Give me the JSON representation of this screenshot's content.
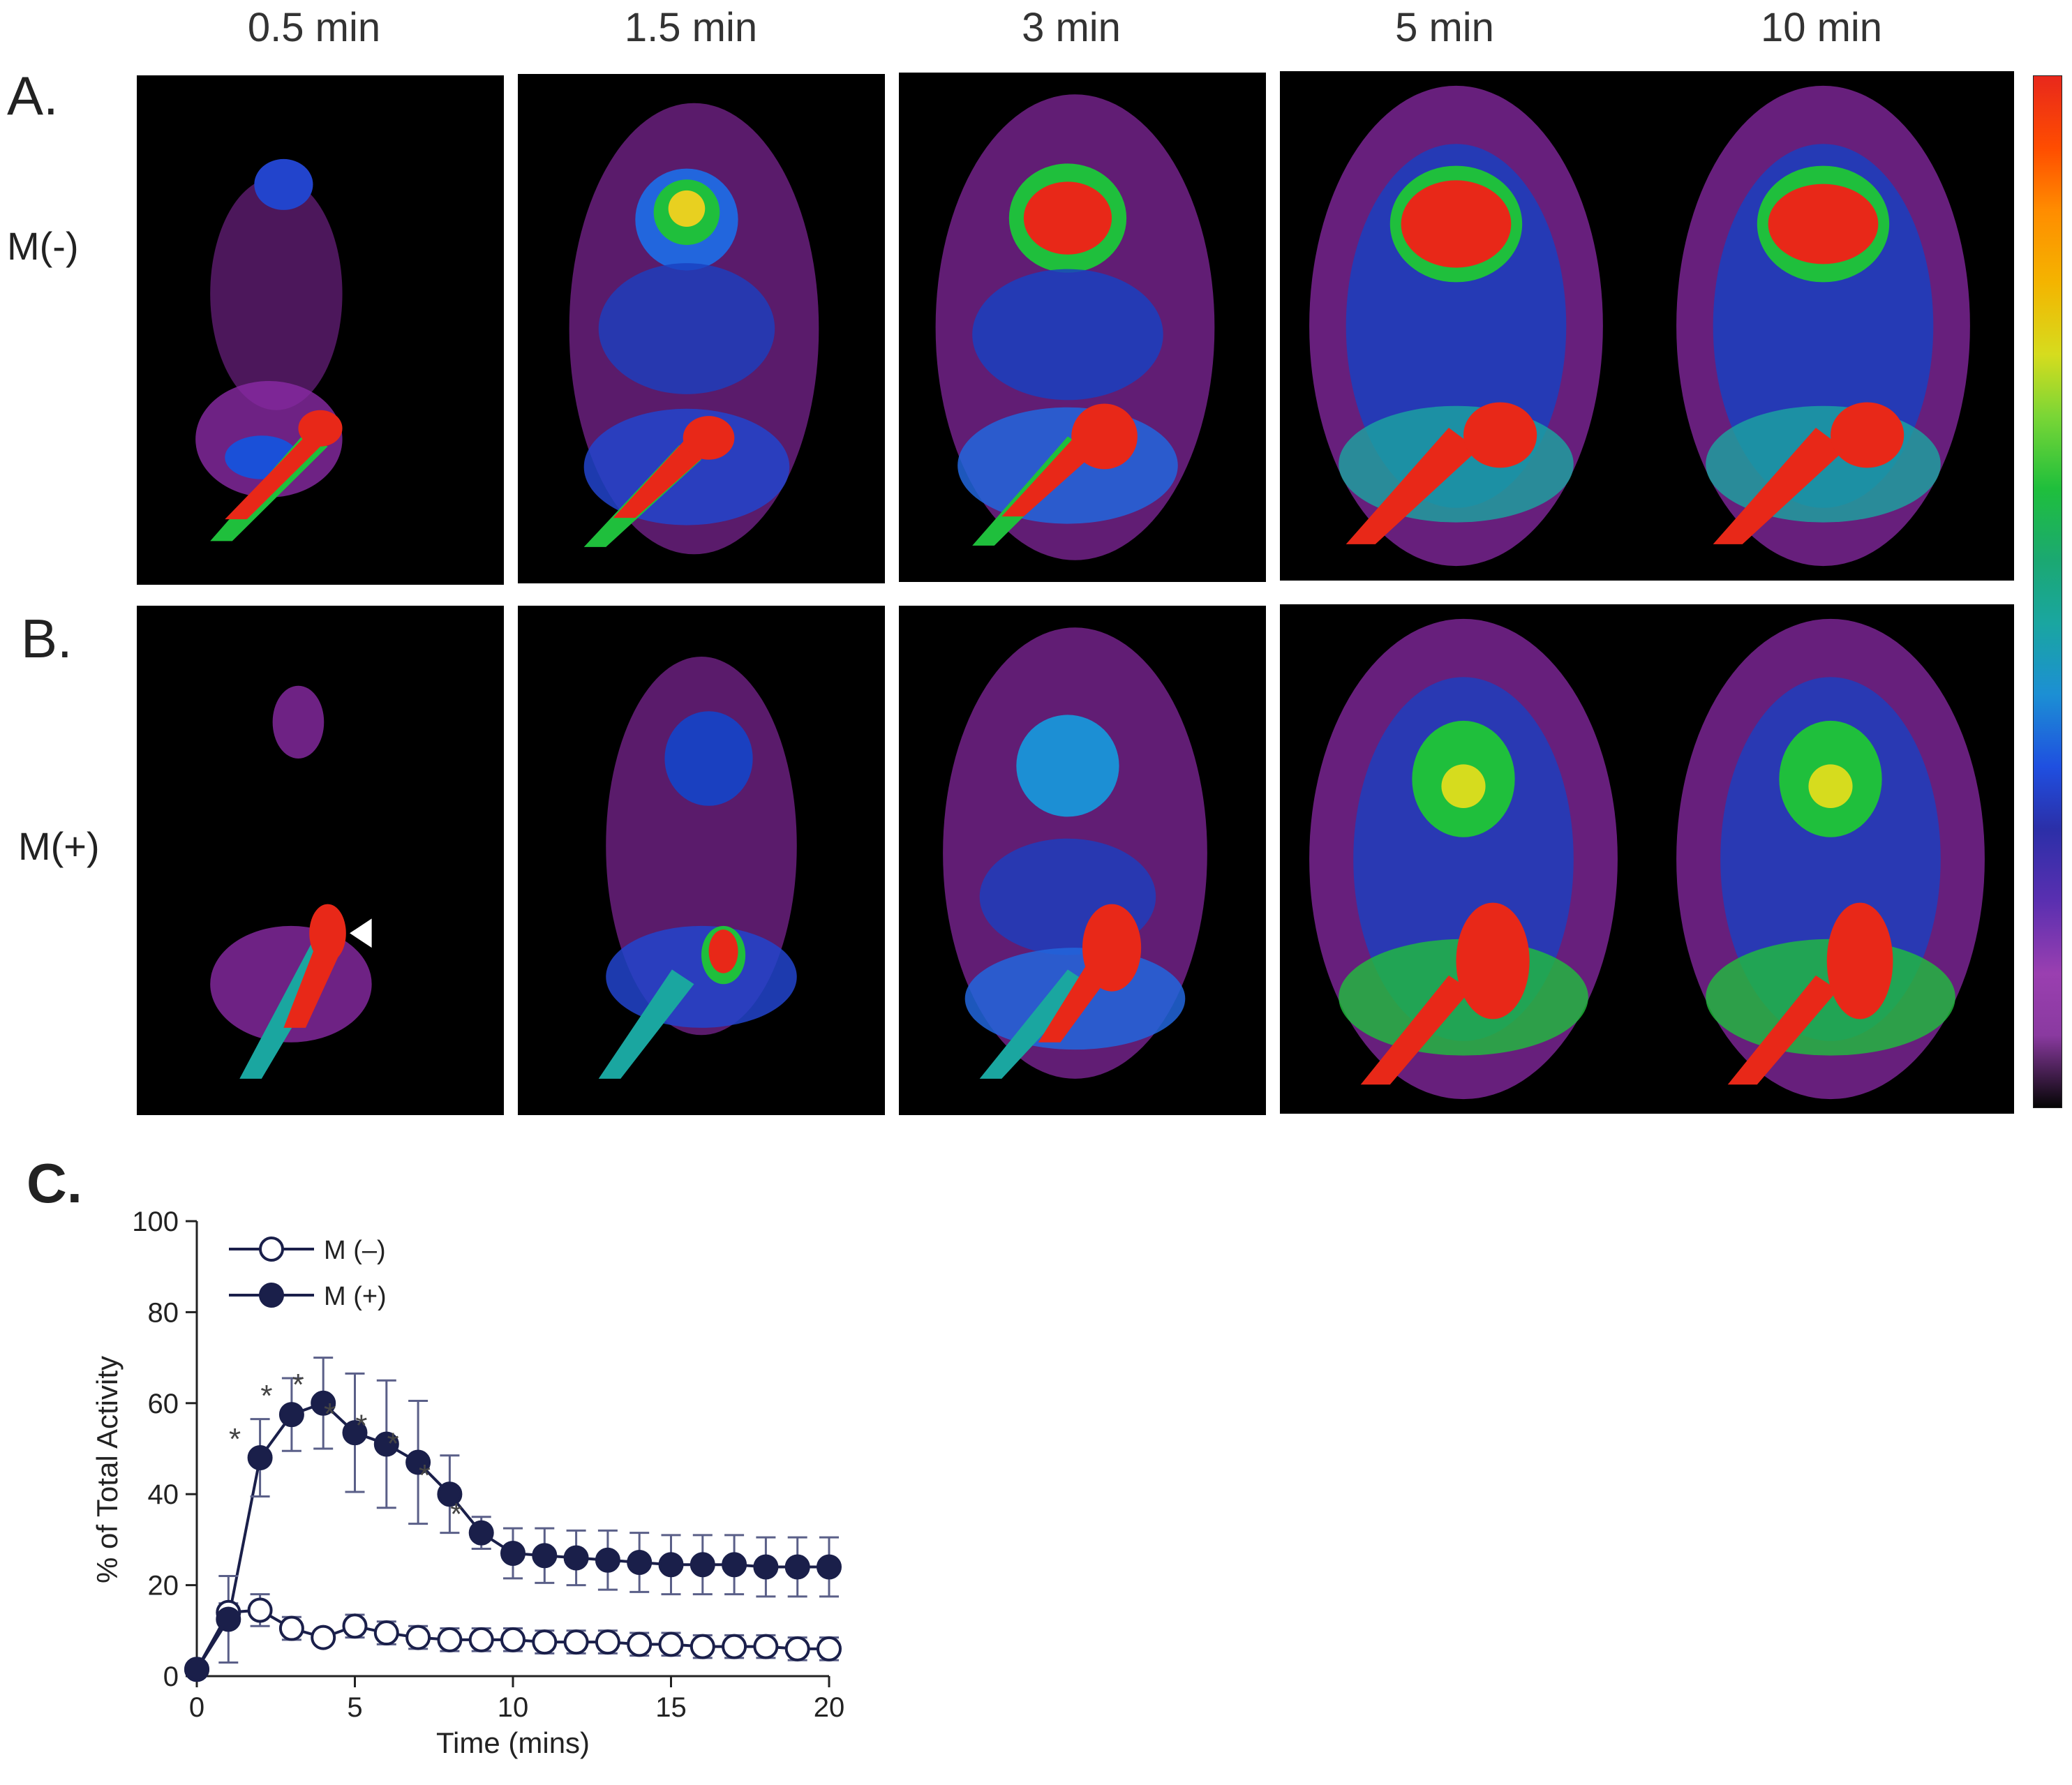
{
  "time_labels": [
    "0.5 min",
    "1.5 min",
    "3 min",
    "5 min",
    "10 min"
  ],
  "panels": {
    "a": {
      "letter": "A.",
      "condition": "M(-)"
    },
    "b": {
      "letter": "B.",
      "condition": "M(+)"
    },
    "c": {
      "letter": "C."
    }
  },
  "colorbar": {
    "stops": [
      "#e8281c",
      "#ff4d00",
      "#ff8c00",
      "#f4b400",
      "#d6dc1e",
      "#7ad636",
      "#1fbf3c",
      "#1ba872",
      "#1aa6a0",
      "#1c8fd4",
      "#1f4fe0",
      "#2b2fa8",
      "#5a2fb0",
      "#9a3fb0",
      "#8a3aa0",
      "#050505"
    ]
  },
  "chart_data": {
    "type": "line",
    "xlabel": "Time (mins)",
    "ylabel": "% of Total Activity",
    "xlim": [
      0,
      20
    ],
    "ylim": [
      0,
      100
    ],
    "xticks": [
      0,
      5,
      10,
      15,
      20
    ],
    "yticks": [
      0,
      20,
      40,
      60,
      80,
      100
    ],
    "legend_position": "top-left",
    "x": [
      0,
      1,
      2,
      3,
      4,
      5,
      6,
      7,
      8,
      9,
      10,
      11,
      12,
      13,
      14,
      15,
      16,
      17,
      18,
      19,
      20
    ],
    "series": [
      {
        "name": "M (–)",
        "marker": "open-circle",
        "color": "#1a1f4a",
        "values": [
          1.5,
          14,
          14.5,
          10.5,
          8.5,
          11,
          9.5,
          8.5,
          8,
          8,
          8,
          7.5,
          7.5,
          7.5,
          7,
          7,
          6.5,
          6.5,
          6.5,
          6,
          6
        ],
        "errors": [
          0,
          2,
          3.5,
          2.5,
          1.5,
          2.5,
          2.5,
          2.5,
          2.5,
          2.5,
          2.5,
          2.5,
          2.5,
          2.5,
          2.5,
          2.5,
          2.5,
          2.5,
          2.5,
          2.5,
          2.5
        ]
      },
      {
        "name": "M (+)",
        "marker": "filled-circle",
        "color": "#1a1f4a",
        "values": [
          1.5,
          12.5,
          48,
          57.5,
          60,
          53.5,
          51,
          47,
          40,
          31.5,
          27,
          26.5,
          26,
          25.5,
          25,
          24.5,
          24.5,
          24.5,
          24,
          24,
          24
        ],
        "errors": [
          0,
          9.5,
          8.5,
          8,
          10,
          13,
          14,
          13.5,
          8.5,
          3.5,
          5.5,
          6,
          6,
          6.5,
          6.5,
          6.5,
          6.5,
          6.5,
          6.5,
          6.5,
          6.5
        ]
      }
    ],
    "annotations": [
      {
        "text": "*",
        "x": 2
      },
      {
        "text": "*",
        "x": 3
      },
      {
        "text": "*",
        "x": 4
      },
      {
        "text": "*",
        "x": 5
      },
      {
        "text": "*",
        "x": 6
      },
      {
        "text": "*",
        "x": 7
      },
      {
        "text": "*",
        "x": 8
      },
      {
        "text": "*",
        "x": 9
      }
    ]
  }
}
